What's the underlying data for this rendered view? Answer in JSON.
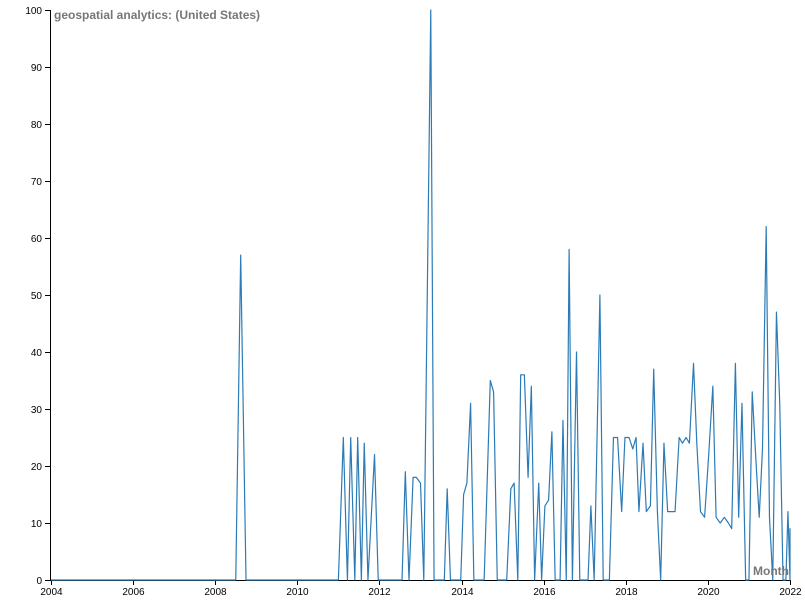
{
  "chart_data": {
    "type": "line",
    "title": "geospatial analytics: (United States)",
    "xlabel": "Month",
    "ylabel": "",
    "xlim": [
      2004,
      2022
    ],
    "ylim": [
      0,
      100
    ],
    "x_ticks": [
      "2004",
      "2006",
      "2008",
      "2010",
      "2012",
      "2014",
      "2016",
      "2018",
      "2020",
      "2022"
    ],
    "y_ticks": [
      "0",
      "10",
      "20",
      "30",
      "40",
      "50",
      "60",
      "70",
      "80",
      "90",
      "100"
    ],
    "grid": false,
    "color": "#2c7bb6",
    "series": [
      {
        "values": [
          [
            2004.0,
            0
          ],
          [
            2008.5,
            0
          ],
          [
            2008.62,
            57
          ],
          [
            2008.75,
            0
          ],
          [
            2011.0,
            0
          ],
          [
            2011.12,
            25
          ],
          [
            2011.22,
            0
          ],
          [
            2011.3,
            25
          ],
          [
            2011.4,
            0
          ],
          [
            2011.47,
            25
          ],
          [
            2011.56,
            0
          ],
          [
            2011.63,
            24
          ],
          [
            2011.72,
            0
          ],
          [
            2011.88,
            22
          ],
          [
            2011.97,
            0
          ],
          [
            2012.55,
            0
          ],
          [
            2012.63,
            19
          ],
          [
            2012.72,
            0
          ],
          [
            2012.82,
            18
          ],
          [
            2012.9,
            18
          ],
          [
            2013.0,
            17
          ],
          [
            2013.08,
            0
          ],
          [
            2013.25,
            100
          ],
          [
            2013.33,
            0
          ],
          [
            2013.58,
            0
          ],
          [
            2013.65,
            16
          ],
          [
            2013.73,
            0
          ],
          [
            2013.98,
            0
          ],
          [
            2014.05,
            15
          ],
          [
            2014.13,
            17
          ],
          [
            2014.22,
            31
          ],
          [
            2014.3,
            0
          ],
          [
            2014.55,
            0
          ],
          [
            2014.7,
            35
          ],
          [
            2014.78,
            33
          ],
          [
            2014.87,
            0
          ],
          [
            2015.1,
            0
          ],
          [
            2015.2,
            16
          ],
          [
            2015.28,
            17
          ],
          [
            2015.37,
            0
          ],
          [
            2015.44,
            36
          ],
          [
            2015.53,
            36
          ],
          [
            2015.62,
            18
          ],
          [
            2015.7,
            34
          ],
          [
            2015.78,
            0
          ],
          [
            2015.88,
            17
          ],
          [
            2015.95,
            0
          ],
          [
            2016.03,
            13
          ],
          [
            2016.12,
            14
          ],
          [
            2016.2,
            26
          ],
          [
            2016.28,
            0
          ],
          [
            2016.4,
            0
          ],
          [
            2016.47,
            28
          ],
          [
            2016.55,
            0
          ],
          [
            2016.62,
            58
          ],
          [
            2016.7,
            0
          ],
          [
            2016.8,
            40
          ],
          [
            2016.88,
            0
          ],
          [
            2017.08,
            0
          ],
          [
            2017.15,
            13
          ],
          [
            2017.23,
            0
          ],
          [
            2017.37,
            50
          ],
          [
            2017.45,
            0
          ],
          [
            2017.6,
            0
          ],
          [
            2017.7,
            25
          ],
          [
            2017.8,
            25
          ],
          [
            2017.9,
            12
          ],
          [
            2017.98,
            25
          ],
          [
            2018.08,
            25
          ],
          [
            2018.17,
            23
          ],
          [
            2018.25,
            25
          ],
          [
            2018.32,
            12
          ],
          [
            2018.42,
            24
          ],
          [
            2018.5,
            12
          ],
          [
            2018.6,
            13
          ],
          [
            2018.68,
            37
          ],
          [
            2018.77,
            12
          ],
          [
            2018.85,
            0
          ],
          [
            2018.93,
            24
          ],
          [
            2019.02,
            12
          ],
          [
            2019.12,
            12
          ],
          [
            2019.2,
            12
          ],
          [
            2019.3,
            25
          ],
          [
            2019.38,
            24
          ],
          [
            2019.47,
            25
          ],
          [
            2019.55,
            24
          ],
          [
            2019.65,
            38
          ],
          [
            2019.73,
            24
          ],
          [
            2019.82,
            12
          ],
          [
            2019.92,
            11
          ],
          [
            2020.02,
            22
          ],
          [
            2020.12,
            34
          ],
          [
            2020.2,
            11
          ],
          [
            2020.3,
            10
          ],
          [
            2020.4,
            11
          ],
          [
            2020.5,
            10
          ],
          [
            2020.58,
            9
          ],
          [
            2020.67,
            38
          ],
          [
            2020.75,
            11
          ],
          [
            2020.83,
            31
          ],
          [
            2020.92,
            0
          ],
          [
            2021.0,
            0
          ],
          [
            2021.08,
            33
          ],
          [
            2021.17,
            21
          ],
          [
            2021.25,
            11
          ],
          [
            2021.33,
            23
          ],
          [
            2021.42,
            62
          ],
          [
            2021.5,
            11
          ],
          [
            2021.58,
            0
          ],
          [
            2021.67,
            47
          ],
          [
            2021.75,
            31
          ],
          [
            2021.83,
            0
          ],
          [
            2021.9,
            0
          ],
          [
            2021.95,
            12
          ],
          [
            2022.0,
            0
          ],
          [
            2022.1,
            9
          ],
          [
            2022.2,
            9
          ],
          [
            2022.3,
            9
          ],
          [
            2022.4,
            0
          ]
        ]
      }
    ]
  }
}
